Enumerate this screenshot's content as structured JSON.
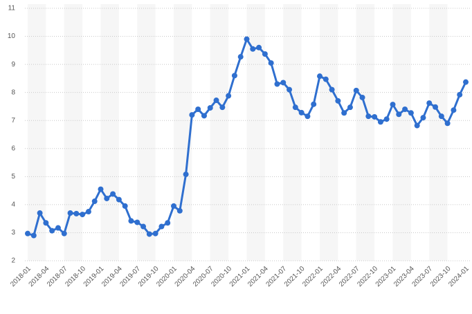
{
  "chart_data": {
    "type": "line",
    "categories": [
      "2018-01",
      null,
      null,
      "2018-04",
      null,
      null,
      "2018-07",
      null,
      null,
      "2018-10",
      null,
      null,
      "2019-01",
      null,
      null,
      "2019-04",
      null,
      null,
      "2019-07",
      null,
      null,
      "2019-10",
      null,
      null,
      "2020-01",
      null,
      null,
      "2020-04",
      null,
      null,
      "2020-07",
      null,
      null,
      "2020-10",
      null,
      null,
      "2021-01",
      null,
      null,
      "2021-04",
      null,
      null,
      "2021-07",
      null,
      null,
      "2021-10",
      null,
      null,
      "2022-01",
      null,
      null,
      "2022-04",
      null,
      null,
      "2022-07",
      null,
      null,
      "2022-10",
      null,
      null,
      "2023-01",
      null,
      null,
      "2023-04",
      null,
      null,
      "2023-07",
      null,
      null,
      "2023-10",
      null,
      null,
      "2024-01"
    ],
    "series": [
      {
        "color": "#2f6fcf",
        "values": [
          2.97,
          2.9,
          3.7,
          3.35,
          3.07,
          3.17,
          2.97,
          3.7,
          3.68,
          3.65,
          3.75,
          4.12,
          4.55,
          4.22,
          4.38,
          4.18,
          3.95,
          3.42,
          3.37,
          3.22,
          2.95,
          2.97,
          3.22,
          3.35,
          3.95,
          3.78,
          5.08,
          7.2,
          7.4,
          7.17,
          7.45,
          7.72,
          7.47,
          7.88,
          8.6,
          9.27,
          9.9,
          9.55,
          9.6,
          9.37,
          9.05,
          8.3,
          8.35,
          8.1,
          7.47,
          7.28,
          7.15,
          7.58,
          8.58,
          8.47,
          8.1,
          7.7,
          7.27,
          7.47,
          8.07,
          7.82,
          7.15,
          7.13,
          6.95,
          7.05,
          7.57,
          7.22,
          7.4,
          7.27,
          6.82,
          7.1,
          7.62,
          7.48,
          7.15,
          6.9,
          7.37,
          7.92,
          8.37
        ]
      }
    ],
    "ylim": [
      2,
      11
    ],
    "yticks": [
      2,
      3,
      4,
      5,
      6,
      7,
      8,
      9,
      10,
      11
    ],
    "grid": true
  }
}
